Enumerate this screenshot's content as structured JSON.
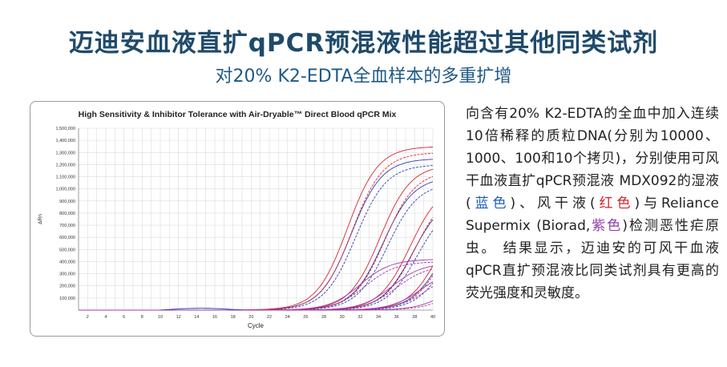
{
  "page": {
    "title": "迈迪安血液直扩qPCR预混液性能超过其他同类试剂",
    "subtitle": "对20% K2-EDTA全血样本的多重扩增"
  },
  "description": {
    "part1": "向含有20% K2-EDTA的全血中加入连续10倍稀释的质粒DNA(分别为10000、1000、100和10个拷贝)，分别使用可风干血液直扩qPCR预混液 MDX092的湿液(",
    "blue_word": "蓝色",
    "part2": ")、风干液(",
    "red_word": "红色",
    "part3": ")与Reliance Supermix (Biorad,",
    "purple_word": "紫色",
    "part4": ")检测恶性疟原虫。 结果显示，迈迪安的可风干血液qPCR直扩预混液比同类试剂具有更高的荧光强度和灵敏度。"
  },
  "colors": {
    "blue": "#2a3fb0",
    "red": "#d62430",
    "purple": "#a23aa6"
  },
  "chart_data": {
    "type": "line",
    "title": "High Sensitivity & Inhibitor Tolerance with Air-Dryable™ Direct Blood qPCR Mix",
    "xlabel": "Cycle",
    "ylabel": "ΔRn",
    "xlim": [
      1,
      40
    ],
    "ylim": [
      0,
      1500000
    ],
    "xticks": [
      2,
      4,
      6,
      8,
      10,
      12,
      14,
      16,
      18,
      20,
      22,
      24,
      26,
      28,
      30,
      32,
      34,
      36,
      38,
      40
    ],
    "yticks": [
      100000,
      200000,
      300000,
      400000,
      500000,
      600000,
      700000,
      800000,
      900000,
      1000000,
      1100000,
      1200000,
      1300000,
      1400000,
      1500000
    ],
    "ytick_labels": [
      "100,000",
      "200,000",
      "300,000",
      "400,000",
      "500,000",
      "600,000",
      "700,000",
      "800,000",
      "900,000",
      "1,000,000",
      "1,100,000",
      "1,200,000",
      "1,300,000",
      "1,400,000",
      "1,500,000"
    ],
    "grid": true,
    "series": [
      {
        "group": "blue",
        "ct": 27.0,
        "plateau": 1250000
      },
      {
        "group": "blue",
        "ct": 27.5,
        "plateau": 1200000
      },
      {
        "group": "blue",
        "ct": 30.5,
        "plateau": 1100000
      },
      {
        "group": "blue",
        "ct": 31.0,
        "plateau": 1050000
      },
      {
        "group": "blue",
        "ct": 33.8,
        "plateau": 950000
      },
      {
        "group": "blue",
        "ct": 34.3,
        "plateau": 900000
      },
      {
        "group": "blue",
        "ct": 37.0,
        "plateau": 850000
      },
      {
        "group": "blue",
        "ct": 37.6,
        "plateau": 800000
      },
      {
        "group": "red",
        "ct": 26.6,
        "plateau": 1350000
      },
      {
        "group": "red",
        "ct": 27.1,
        "plateau": 1300000
      },
      {
        "group": "red",
        "ct": 30.2,
        "plateau": 1200000
      },
      {
        "group": "red",
        "ct": 30.7,
        "plateau": 1150000
      },
      {
        "group": "red",
        "ct": 33.5,
        "plateau": 1050000
      },
      {
        "group": "red",
        "ct": 34.0,
        "plateau": 1000000
      },
      {
        "group": "red",
        "ct": 36.8,
        "plateau": 950000
      },
      {
        "group": "red",
        "ct": 37.3,
        "plateau": 900000
      },
      {
        "group": "purple",
        "ct": 28.0,
        "plateau": 420000
      },
      {
        "group": "purple",
        "ct": 28.6,
        "plateau": 400000
      },
      {
        "group": "purple",
        "ct": 31.5,
        "plateau": 390000
      },
      {
        "group": "purple",
        "ct": 32.0,
        "plateau": 370000
      },
      {
        "group": "purple",
        "ct": 34.8,
        "plateau": 350000
      },
      {
        "group": "purple",
        "ct": 35.4,
        "plateau": 330000
      },
      {
        "group": "purple",
        "ct": 37.8,
        "plateau": 300000
      },
      {
        "group": "purple",
        "ct": 38.4,
        "plateau": 280000
      }
    ]
  }
}
